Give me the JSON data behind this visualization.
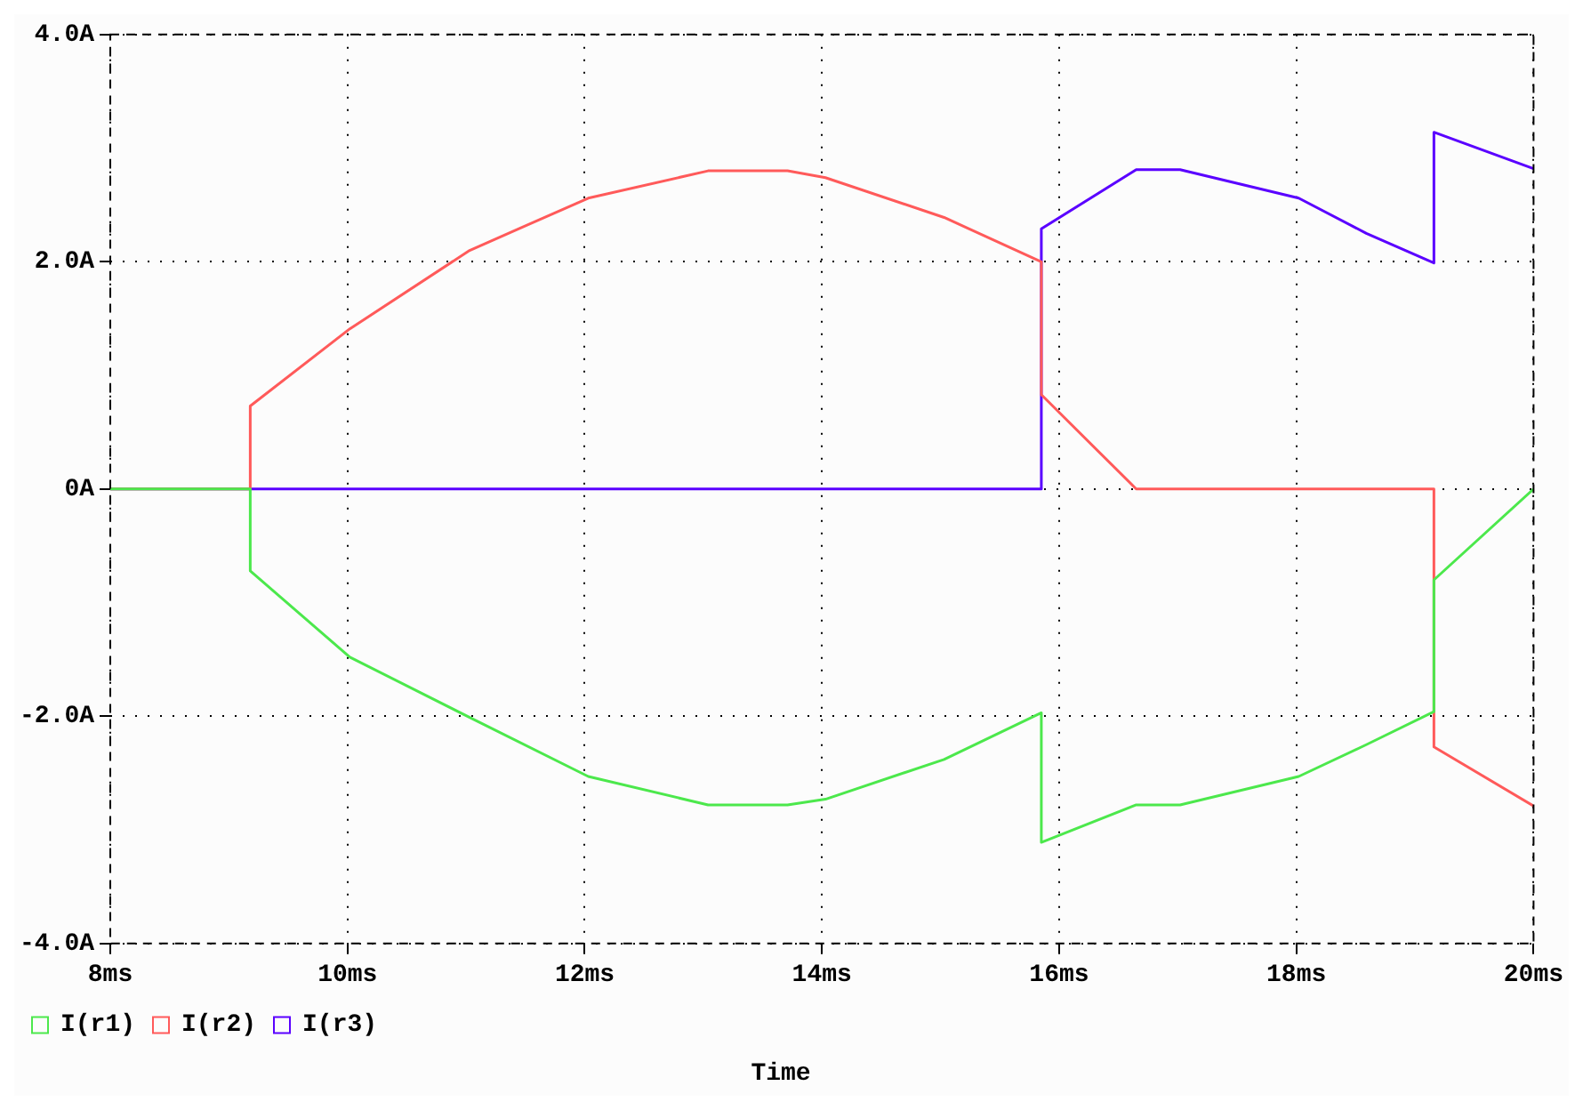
{
  "chart_data": {
    "type": "line",
    "xlabel": "Time",
    "xlim": [
      8,
      20
    ],
    "xticks": [
      {
        "value": 8,
        "label": "8ms"
      },
      {
        "value": 10,
        "label": "10ms"
      },
      {
        "value": 12,
        "label": "12ms"
      },
      {
        "value": 14,
        "label": "14ms"
      },
      {
        "value": 16,
        "label": "16ms"
      },
      {
        "value": 18,
        "label": "18ms"
      },
      {
        "value": 20,
        "label": "20ms"
      }
    ],
    "ylim": [
      -4,
      4
    ],
    "yticks": [
      {
        "value": -4,
        "label": "-4.0A"
      },
      {
        "value": -2,
        "label": "-2.0A"
      },
      {
        "value": 0,
        "label": "0A"
      },
      {
        "value": 2,
        "label": "2.0A"
      },
      {
        "value": 4,
        "label": "4.0A"
      }
    ],
    "grid": true,
    "legend": "bottom left",
    "line_style": "solid",
    "series": [
      {
        "name": "I(r1)",
        "color": "#4ce84c",
        "x": [
          8,
          9.18,
          9.18,
          10.02,
          11.03,
          12.03,
          13.04,
          13.71,
          14.03,
          15.03,
          15.85,
          15.85,
          16.65,
          17.02,
          18.02,
          18.59,
          19.16,
          19.16,
          20
        ],
        "values": [
          0,
          0,
          -0.72,
          -1.48,
          -2.01,
          -2.53,
          -2.78,
          -2.78,
          -2.73,
          -2.38,
          -1.97,
          -3.11,
          -2.78,
          -2.78,
          -2.53,
          -2.25,
          -1.96,
          -0.8,
          0
        ]
      },
      {
        "name": "I(r2)",
        "color": "#ff5a5a",
        "x": [
          8,
          9.18,
          9.18,
          10.02,
          11.03,
          12.03,
          13.04,
          13.71,
          14.03,
          15.03,
          15.85,
          15.85,
          16.65,
          19.16,
          19.16,
          20
        ],
        "values": [
          0,
          0,
          0.73,
          1.41,
          2.1,
          2.56,
          2.8,
          2.8,
          2.74,
          2.39,
          2.0,
          0.83,
          0,
          0,
          -2.27,
          -2.79
        ]
      },
      {
        "name": "I(r3)",
        "color": "#5a00ff",
        "x": [
          8,
          15.85,
          15.85,
          16.65,
          17.02,
          18.02,
          18.59,
          19.16,
          19.16,
          20
        ],
        "values": [
          0,
          0,
          2.29,
          2.81,
          2.81,
          2.56,
          2.25,
          1.99,
          3.14,
          2.82
        ]
      }
    ]
  }
}
